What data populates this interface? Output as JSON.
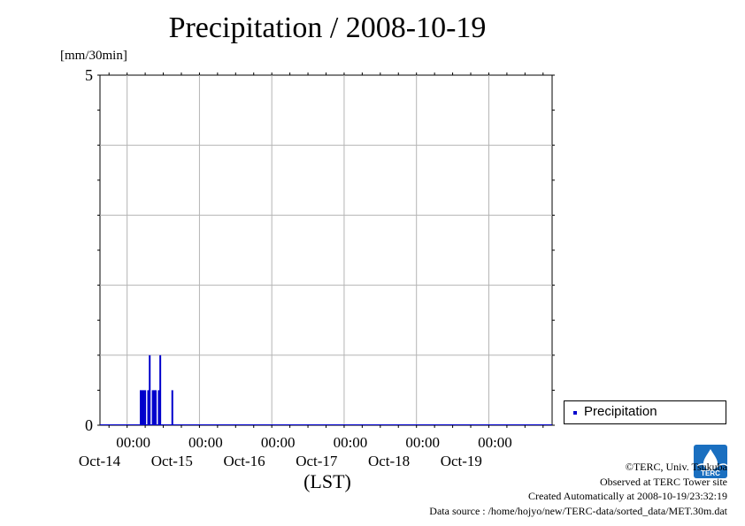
{
  "title": "Precipitation / 2008-10-19",
  "unit_label": "[mm/30min]",
  "x_axis_label": "(LST)",
  "legend": {
    "label": "Precipitation",
    "color": "#0000cc"
  },
  "footer": {
    "copyright": "©TERC, Univ. Tsukuba",
    "observed": "Observed at TERC Tower site",
    "created": "Created Automatically at 2008-10-19/23:32:19",
    "source": "Data source : /home/hojyo/new/TERC-data/sorted_data/MET.30m.dat"
  },
  "logo": {
    "text": "TERC",
    "color": "#1a6fc0"
  },
  "chart_data": {
    "type": "bar",
    "title": "Precipitation / 2008-10-19",
    "ylabel": "[mm/30min]",
    "xlabel": "(LST)",
    "ylim": [
      0,
      5
    ],
    "y_tick_labels": [
      "0",
      "5"
    ],
    "x_range_hours": [
      -9,
      141
    ],
    "x_ticks": [
      {
        "time": "00:00",
        "date": "Oct-14"
      },
      {
        "time": "00:00",
        "date": "Oct-15"
      },
      {
        "time": "00:00",
        "date": "Oct-16"
      },
      {
        "time": "00:00",
        "date": "Oct-17"
      },
      {
        "time": "00:00",
        "date": "Oct-18"
      },
      {
        "time": "00:00",
        "date": "Oct-19"
      }
    ],
    "grid": true,
    "legend_position": "bottom-right",
    "series": [
      {
        "name": "Precipitation",
        "color": "#0000cc",
        "points": [
          {
            "time": "2008-10-14 04:30",
            "value": 0.5
          },
          {
            "time": "2008-10-14 05:00",
            "value": 0.5
          },
          {
            "time": "2008-10-14 05:30",
            "value": 0.5
          },
          {
            "time": "2008-10-14 06:00",
            "value": 0.5
          },
          {
            "time": "2008-10-14 07:00",
            "value": 0.5
          },
          {
            "time": "2008-10-14 07:30",
            "value": 1.0
          },
          {
            "time": "2008-10-14 08:30",
            "value": 0.5
          },
          {
            "time": "2008-10-14 09:00",
            "value": 0.5
          },
          {
            "time": "2008-10-14 09:30",
            "value": 0.5
          },
          {
            "time": "2008-10-14 10:30",
            "value": 0.5
          },
          {
            "time": "2008-10-14 11:00",
            "value": 1.0
          },
          {
            "time": "2008-10-14 15:00",
            "value": 0.5
          }
        ]
      }
    ]
  }
}
